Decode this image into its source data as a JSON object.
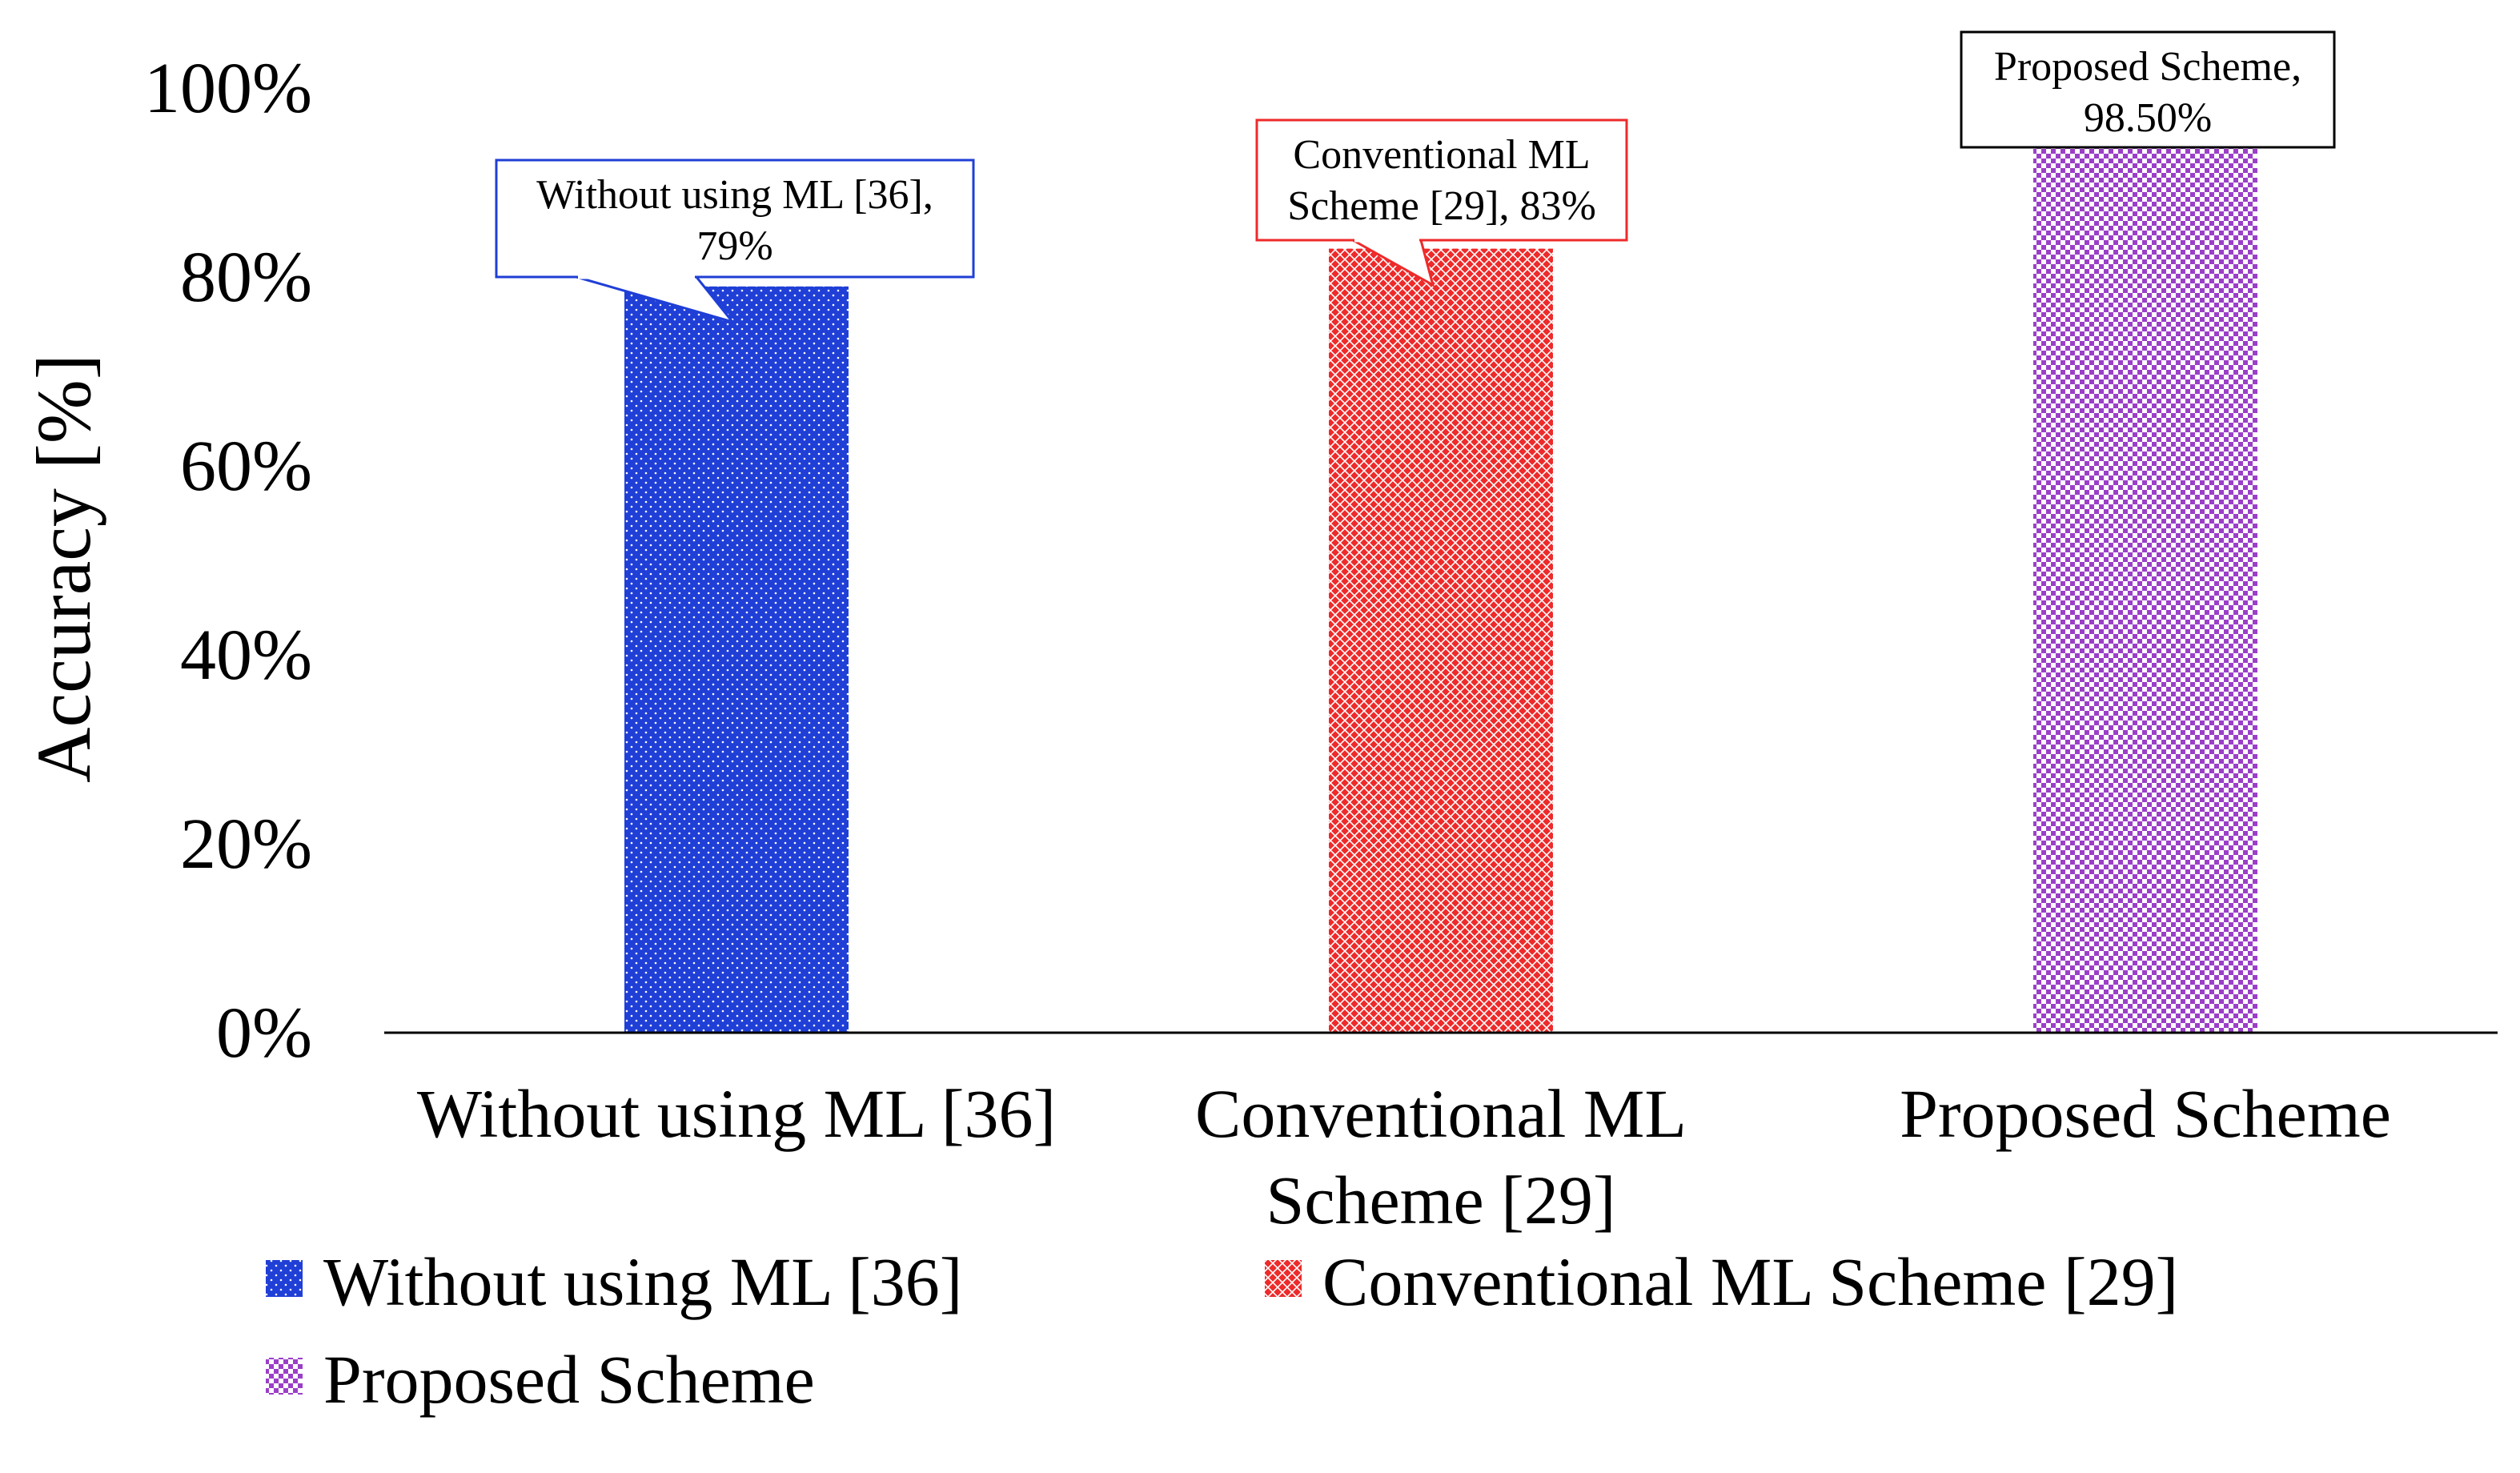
{
  "chart_data": {
    "type": "bar",
    "title": "",
    "xlabel": "",
    "ylabel": "Accuracy [%]",
    "ylim": [
      0,
      100
    ],
    "yticks": [
      "0%",
      "20%",
      "40%",
      "60%",
      "80%",
      "100%"
    ],
    "grid": false,
    "legend_position": "bottom",
    "categories": [
      [
        "Without using ML [36]"
      ],
      [
        "Conventional ML",
        "Scheme [29]"
      ],
      [
        "Proposed Scheme"
      ]
    ],
    "series": [
      {
        "name": "Without using ML [36]",
        "value": 79,
        "color": "#1f3fd6",
        "pattern": "dots",
        "callout": [
          "Without using ML [36],",
          "79%"
        ]
      },
      {
        "name": "Conventional ML Scheme [29]",
        "value": 83,
        "color": "#ee2a2a",
        "pattern": "crosshatch",
        "callout": [
          "Conventional ML",
          "Scheme [29], 83%"
        ]
      },
      {
        "name": "Proposed Scheme",
        "value": 98.5,
        "color": "#9b3fc8",
        "pattern": "checker",
        "callout": [
          "Proposed Scheme,",
          "98.50%"
        ]
      }
    ],
    "legend": [
      [
        "Without using ML [36]",
        "Conventional ML Scheme [29]"
      ],
      [
        "Proposed Scheme"
      ]
    ]
  }
}
